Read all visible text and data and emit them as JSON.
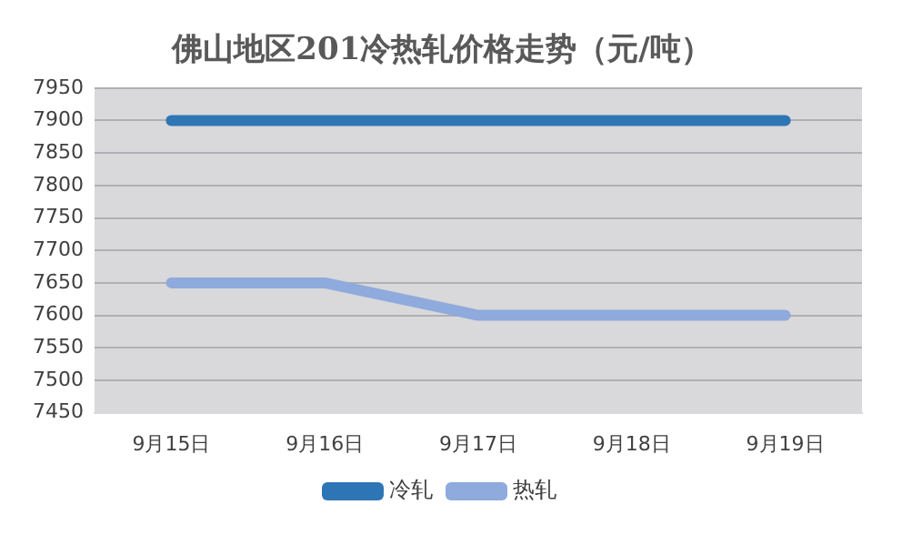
{
  "chart_data": {
    "type": "line",
    "title": "佛山地区201冷热轧价格走势（元/吨）",
    "categories": [
      "9月15日",
      "9月16日",
      "9月17日",
      "9月18日",
      "9月19日"
    ],
    "series": [
      {
        "name": "冷轧",
        "color": "#2e75b6",
        "values": [
          7900,
          7900,
          7900,
          7900,
          7900
        ]
      },
      {
        "name": "热轧",
        "color": "#8faadc",
        "values": [
          7650,
          7650,
          7600,
          7600,
          7600
        ]
      }
    ],
    "ylim": [
      7450,
      7950
    ],
    "yticks": [
      7450,
      7500,
      7550,
      7600,
      7650,
      7700,
      7750,
      7800,
      7850,
      7900,
      7950
    ],
    "grid": "y",
    "legend": "bottom",
    "marker": "none",
    "line_style": "solid"
  }
}
